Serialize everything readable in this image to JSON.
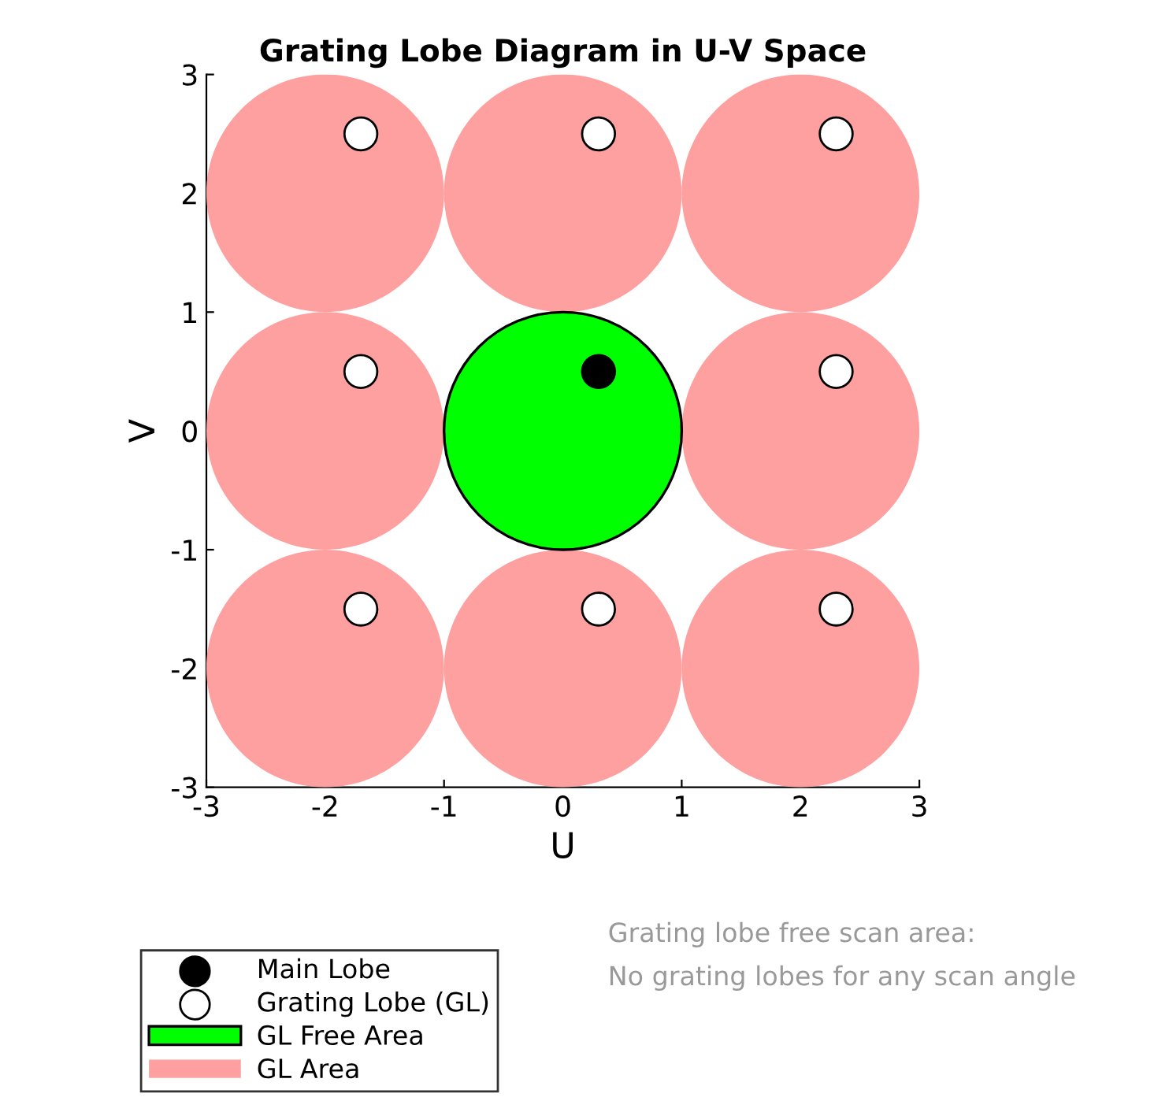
{
  "chart_data": {
    "type": "scatter",
    "title": "Grating Lobe Diagram in U-V Space",
    "xlabel": "U",
    "ylabel": "V",
    "xlim": [
      -3,
      3
    ],
    "ylim": [
      -3,
      3
    ],
    "xticks": [
      -3,
      -2,
      -1,
      0,
      1,
      2,
      3
    ],
    "yticks": [
      -3,
      -2,
      -1,
      0,
      1,
      2,
      3
    ],
    "grid": false,
    "legend": "bottom left",
    "marker": "circle",
    "series": [
      {
        "name": "Main Lobe",
        "type": "scatter",
        "color": "#000000",
        "x": [
          0.3
        ],
        "values": [
          0.5
        ]
      },
      {
        "name": "Grating Lobe (GL)",
        "type": "scatter",
        "color": "#ffffff",
        "x": [
          -1.7,
          0.3,
          2.3,
          -1.7,
          2.3,
          -1.7,
          0.3,
          2.3
        ],
        "values": [
          2.5,
          2.5,
          2.5,
          0.5,
          0.5,
          -1.5,
          -1.5,
          -1.5
        ]
      },
      {
        "name": "GL Free Area",
        "type": "bubble",
        "color": "#00ff00",
        "x": [
          0
        ],
        "values": [
          0
        ],
        "sizes": [
          1
        ]
      },
      {
        "name": "GL Area",
        "type": "bubble",
        "color": "#ffa0a0",
        "x": [
          -2,
          0,
          2,
          -2,
          2,
          -2,
          0,
          2
        ],
        "values": [
          2,
          2,
          2,
          0,
          0,
          -2,
          -2,
          -2
        ],
        "sizes": [
          1,
          1,
          1,
          1,
          1,
          1,
          1,
          1
        ]
      }
    ],
    "annotations": [
      "Grating lobe free scan area:\nNo grating lobes for any scan angle"
    ]
  }
}
